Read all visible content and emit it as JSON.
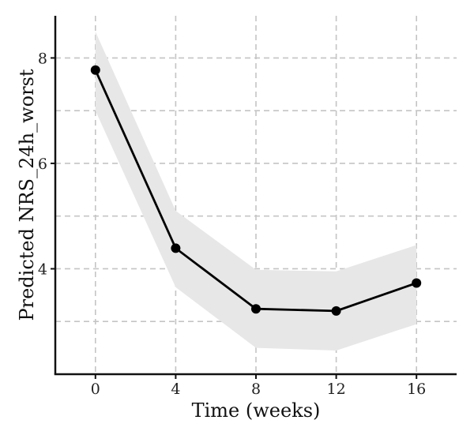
{
  "chart_data": {
    "type": "line",
    "xlabel": "Time (weeks)",
    "ylabel": "Predicted NRS_24h_worst",
    "x": [
      0,
      4,
      8,
      12,
      16
    ],
    "series": [
      {
        "values": [
          7.77,
          4.39,
          3.24,
          3.2,
          3.73
        ],
        "ci_lower": [
          7.0,
          3.65,
          2.5,
          2.45,
          2.95
        ],
        "ci_upper": [
          8.5,
          5.1,
          3.98,
          3.95,
          4.45
        ],
        "line_color": "#000000",
        "band_color": "#e7e7e7"
      }
    ],
    "xticks": [
      0,
      4,
      8,
      12,
      16
    ],
    "yticks": [
      4,
      6,
      8
    ],
    "xlim": [
      -2,
      18
    ],
    "ylim": [
      2.0,
      8.8
    ],
    "grid": true
  }
}
